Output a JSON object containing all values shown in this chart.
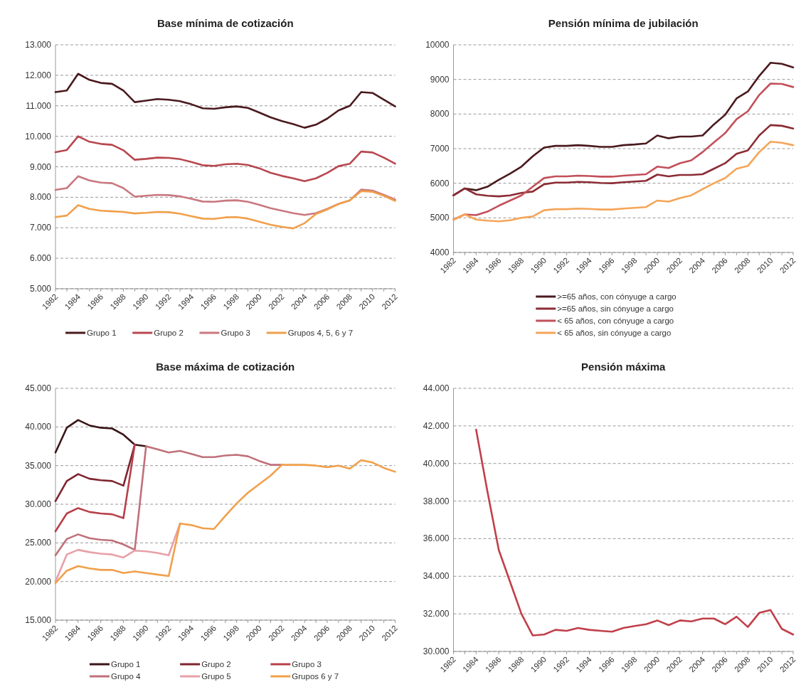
{
  "chart_data": [
    {
      "type": "line",
      "title": "Base mínima de cotización",
      "x": [
        1982,
        1983,
        1984,
        1985,
        1986,
        1987,
        1988,
        1989,
        1990,
        1991,
        1992,
        1993,
        1994,
        1995,
        1996,
        1997,
        1998,
        1999,
        2000,
        2001,
        2002,
        2003,
        2004,
        2005,
        2006,
        2007,
        2008,
        2009,
        2010,
        2011,
        2012
      ],
      "xlim": [
        1982,
        2012
      ],
      "xticks": [
        1982,
        1984,
        1986,
        1988,
        1990,
        1992,
        1994,
        1996,
        1998,
        2000,
        2002,
        2004,
        2006,
        2008,
        2010,
        2012
      ],
      "ylim": [
        5000,
        13000
      ],
      "yticks": [
        {
          "value": 5000,
          "label": "5.000"
        },
        {
          "value": 6000,
          "label": "6.000"
        },
        {
          "value": 7000,
          "label": "7.000"
        },
        {
          "value": 8000,
          "label": "8.000"
        },
        {
          "value": 9000,
          "label": "9.000"
        },
        {
          "value": 10000,
          "label": "10.000"
        },
        {
          "value": 11000,
          "label": "11.000"
        },
        {
          "value": 12000,
          "label": "12.000"
        },
        {
          "value": 13000,
          "label": "13.000"
        }
      ],
      "grid": "y",
      "legend": "bottom",
      "marker": "none",
      "line_style": "solid",
      "series": [
        {
          "name": "Grupo 1",
          "color": "#4a1a1e",
          "values": [
            11450,
            11500,
            12050,
            11850,
            11750,
            11720,
            11500,
            11120,
            11170,
            11220,
            11200,
            11150,
            11050,
            10920,
            10900,
            10950,
            10980,
            10930,
            10780,
            10620,
            10500,
            10400,
            10280,
            10380,
            10580,
            10850,
            11000,
            11450,
            11420,
            11200,
            10980
          ]
        },
        {
          "name": "Grupo 2",
          "color": "#b8474f",
          "values": [
            9480,
            9550,
            10000,
            9820,
            9750,
            9720,
            9540,
            9230,
            9260,
            9300,
            9290,
            9250,
            9160,
            9050,
            9030,
            9080,
            9100,
            9060,
            8950,
            8800,
            8700,
            8620,
            8530,
            8620,
            8800,
            9020,
            9100,
            9500,
            9470,
            9300,
            9100
          ]
        },
        {
          "name": "Grupo 3",
          "color": "#c9787f",
          "values": [
            8240,
            8300,
            8690,
            8550,
            8480,
            8460,
            8300,
            8020,
            8050,
            8080,
            8070,
            8030,
            7950,
            7860,
            7850,
            7890,
            7900,
            7850,
            7750,
            7640,
            7560,
            7480,
            7420,
            7480,
            7620,
            7780,
            7900,
            8250,
            8220,
            8080,
            7920
          ]
        },
        {
          "name": "Grupos 4, 5, 6 y 7",
          "color": "#f0a04b",
          "values": [
            7350,
            7400,
            7740,
            7620,
            7560,
            7540,
            7520,
            7470,
            7490,
            7520,
            7510,
            7460,
            7380,
            7300,
            7290,
            7340,
            7350,
            7300,
            7200,
            7100,
            7030,
            6980,
            7150,
            7450,
            7600,
            7780,
            7900,
            8200,
            8180,
            8050,
            7880
          ]
        }
      ]
    },
    {
      "type": "line",
      "title": "Pensión mínima de jubilación",
      "x": [
        1982,
        1983,
        1984,
        1985,
        1986,
        1987,
        1988,
        1989,
        1990,
        1991,
        1992,
        1993,
        1994,
        1995,
        1996,
        1997,
        1998,
        1999,
        2000,
        2001,
        2002,
        2003,
        2004,
        2005,
        2006,
        2007,
        2008,
        2009,
        2010,
        2011,
        2012
      ],
      "xlim": [
        1982,
        2012
      ],
      "xticks": [
        1982,
        1984,
        1986,
        1988,
        1990,
        1992,
        1994,
        1996,
        1998,
        2000,
        2002,
        2004,
        2006,
        2008,
        2010,
        2012
      ],
      "ylim": [
        4000,
        10000
      ],
      "yticks": [
        4000,
        5000,
        6000,
        7000,
        8000,
        9000,
        10000
      ],
      "grid": "y",
      "legend": "bottom",
      "marker": "none",
      "line_style": "solid",
      "series": [
        {
          "name": ">=65 años, con cónyuge a cargo",
          "color": "#4a1a1e",
          "values": [
            5650,
            5850,
            5800,
            5900,
            6100,
            6280,
            6480,
            6780,
            7030,
            7080,
            7080,
            7100,
            7080,
            7050,
            7050,
            7100,
            7120,
            7150,
            7380,
            7300,
            7350,
            7350,
            7380,
            7700,
            7980,
            8450,
            8650,
            9100,
            9480,
            9450,
            9350
          ]
        },
        {
          "name": ">=65 años, sin cónyuge a cargo",
          "color": "#8b2c34",
          "values": [
            5650,
            5850,
            5680,
            5640,
            5620,
            5650,
            5720,
            5760,
            5970,
            6020,
            6020,
            6040,
            6030,
            6010,
            6000,
            6030,
            6050,
            6070,
            6250,
            6200,
            6240,
            6240,
            6260,
            6420,
            6580,
            6850,
            6950,
            7380,
            7680,
            7660,
            7580
          ]
        },
        {
          "name": "< 65 años, con cónyuge a cargo",
          "color": "#c2505a",
          "values": [
            4950,
            5100,
            5080,
            5180,
            5350,
            5500,
            5650,
            5900,
            6150,
            6200,
            6200,
            6220,
            6210,
            6190,
            6190,
            6220,
            6240,
            6260,
            6480,
            6440,
            6580,
            6660,
            6900,
            7180,
            7450,
            7850,
            8080,
            8550,
            8880,
            8870,
            8780
          ]
        },
        {
          "name": "< 65 años, sin cónyuge a cargo",
          "color": "#f5a558",
          "values": [
            4950,
            5100,
            4950,
            4920,
            4900,
            4930,
            5000,
            5040,
            5220,
            5250,
            5250,
            5270,
            5260,
            5240,
            5240,
            5270,
            5290,
            5310,
            5500,
            5470,
            5570,
            5650,
            5830,
            6000,
            6150,
            6420,
            6500,
            6900,
            7200,
            7170,
            7100
          ]
        }
      ]
    },
    {
      "type": "line",
      "title": "Base máxima de cotización",
      "x": [
        1982,
        1983,
        1984,
        1985,
        1986,
        1987,
        1988,
        1989,
        1990,
        1991,
        1992,
        1993,
        1994,
        1995,
        1996,
        1997,
        1998,
        1999,
        2000,
        2001,
        2002,
        2003,
        2004,
        2005,
        2006,
        2007,
        2008,
        2009,
        2010,
        2011,
        2012
      ],
      "xlim": [
        1982,
        2012
      ],
      "xticks": [
        1982,
        1984,
        1986,
        1988,
        1990,
        1992,
        1994,
        1996,
        1998,
        2000,
        2002,
        2004,
        2006,
        2008,
        2010,
        2012
      ],
      "ylim": [
        15000,
        45000
      ],
      "yticks": [
        {
          "value": 15000,
          "label": "15.000"
        },
        {
          "value": 20000,
          "label": "20.000"
        },
        {
          "value": 25000,
          "label": "25.000"
        },
        {
          "value": 30000,
          "label": "30.000"
        },
        {
          "value": 35000,
          "label": "35.000"
        },
        {
          "value": 40000,
          "label": "40.000"
        },
        {
          "value": 45000,
          "label": "45.000"
        }
      ],
      "grid": "y",
      "legend": "bottom",
      "marker": "none",
      "line_style": "solid",
      "series": [
        {
          "name": "Grupo 1",
          "color": "#3a1518",
          "values": [
            36700,
            39900,
            40900,
            40200,
            39900,
            39800,
            39000,
            37700,
            37500,
            null,
            null,
            null,
            null,
            null,
            null,
            null,
            null,
            null,
            null,
            null,
            null,
            null,
            null,
            null,
            null,
            null,
            null,
            null,
            null,
            null,
            null
          ]
        },
        {
          "name": "Grupo 2",
          "color": "#7e2530",
          "values": [
            30400,
            33000,
            33900,
            33300,
            33100,
            33000,
            32400,
            37700,
            null,
            null,
            null,
            null,
            null,
            null,
            null,
            null,
            null,
            null,
            null,
            null,
            null,
            null,
            null,
            null,
            null,
            null,
            null,
            null,
            null,
            null,
            null
          ]
        },
        {
          "name": "Grupo 3",
          "color": "#b8404a",
          "values": [
            26500,
            28800,
            29500,
            29000,
            28800,
            28700,
            28200,
            37700,
            null,
            null,
            null,
            null,
            null,
            null,
            null,
            null,
            null,
            null,
            null,
            null,
            null,
            null,
            null,
            null,
            null,
            null,
            null,
            null,
            null,
            null,
            null
          ]
        },
        {
          "name": "Grupo 4",
          "color": "#c0707a",
          "values": [
            23400,
            25500,
            26100,
            25600,
            25400,
            25300,
            24800,
            24100,
            37500,
            37100,
            36700,
            36900,
            36500,
            36100,
            36100,
            36300,
            36400,
            36200,
            35600,
            35100,
            35100,
            null,
            null,
            null,
            null,
            null,
            null,
            null,
            null,
            null,
            null
          ]
        },
        {
          "name": "Grupo 5",
          "color": "#e8a0a8",
          "values": [
            20000,
            23500,
            24100,
            23800,
            23600,
            23500,
            23100,
            24000,
            23900,
            23700,
            23400,
            27500,
            null,
            null,
            null,
            null,
            null,
            null,
            null,
            null,
            null,
            null,
            null,
            null,
            null,
            null,
            null,
            null,
            null,
            null,
            null
          ]
        },
        {
          "name": "Grupos 6 y 7",
          "color": "#f0a04b",
          "values": [
            19800,
            21400,
            22000,
            21700,
            21500,
            21500,
            21100,
            21300,
            21100,
            20900,
            20700,
            27500,
            27300,
            26900,
            26800,
            28500,
            30100,
            31500,
            32600,
            33700,
            35100,
            35100,
            35100,
            35000,
            34800,
            35000,
            34600,
            35700,
            35400,
            34700,
            34200
          ]
        }
      ]
    },
    {
      "type": "line",
      "title": "Pensión máxima",
      "x": [
        1984,
        1985,
        1986,
        1987,
        1988,
        1989,
        1990,
        1991,
        1992,
        1993,
        1994,
        1995,
        1996,
        1997,
        1998,
        1999,
        2000,
        2001,
        2002,
        2003,
        2004,
        2005,
        2006,
        2007,
        2008,
        2009,
        2010,
        2011,
        2012
      ],
      "xlim": [
        1982,
        2012
      ],
      "xticks": [
        1982,
        1984,
        1986,
        1988,
        1990,
        1992,
        1994,
        1996,
        1998,
        2000,
        2002,
        2004,
        2006,
        2008,
        2010,
        2012
      ],
      "ylim": [
        30000,
        44000
      ],
      "yticks": [
        {
          "value": 30000,
          "label": "30.000"
        },
        {
          "value": 32000,
          "label": "32.000"
        },
        {
          "value": 34000,
          "label": "34.000"
        },
        {
          "value": 36000,
          "label": "36.000"
        },
        {
          "value": 38000,
          "label": "38.000"
        },
        {
          "value": 40000,
          "label": "40.000"
        },
        {
          "value": 42000,
          "label": "42.000"
        },
        {
          "value": 44000,
          "label": "44.000"
        }
      ],
      "grid": "y",
      "marker": "none",
      "line_style": "solid",
      "series": [
        {
          "color": "#c0404a",
          "values": [
            41800,
            38500,
            35400,
            33700,
            32000,
            30850,
            30900,
            31150,
            31100,
            31250,
            31150,
            31100,
            31050,
            31250,
            31350,
            31450,
            31650,
            31400,
            31650,
            31600,
            31750,
            31750,
            31450,
            31850,
            31300,
            32050,
            32200,
            31200,
            30900
          ]
        }
      ]
    }
  ]
}
